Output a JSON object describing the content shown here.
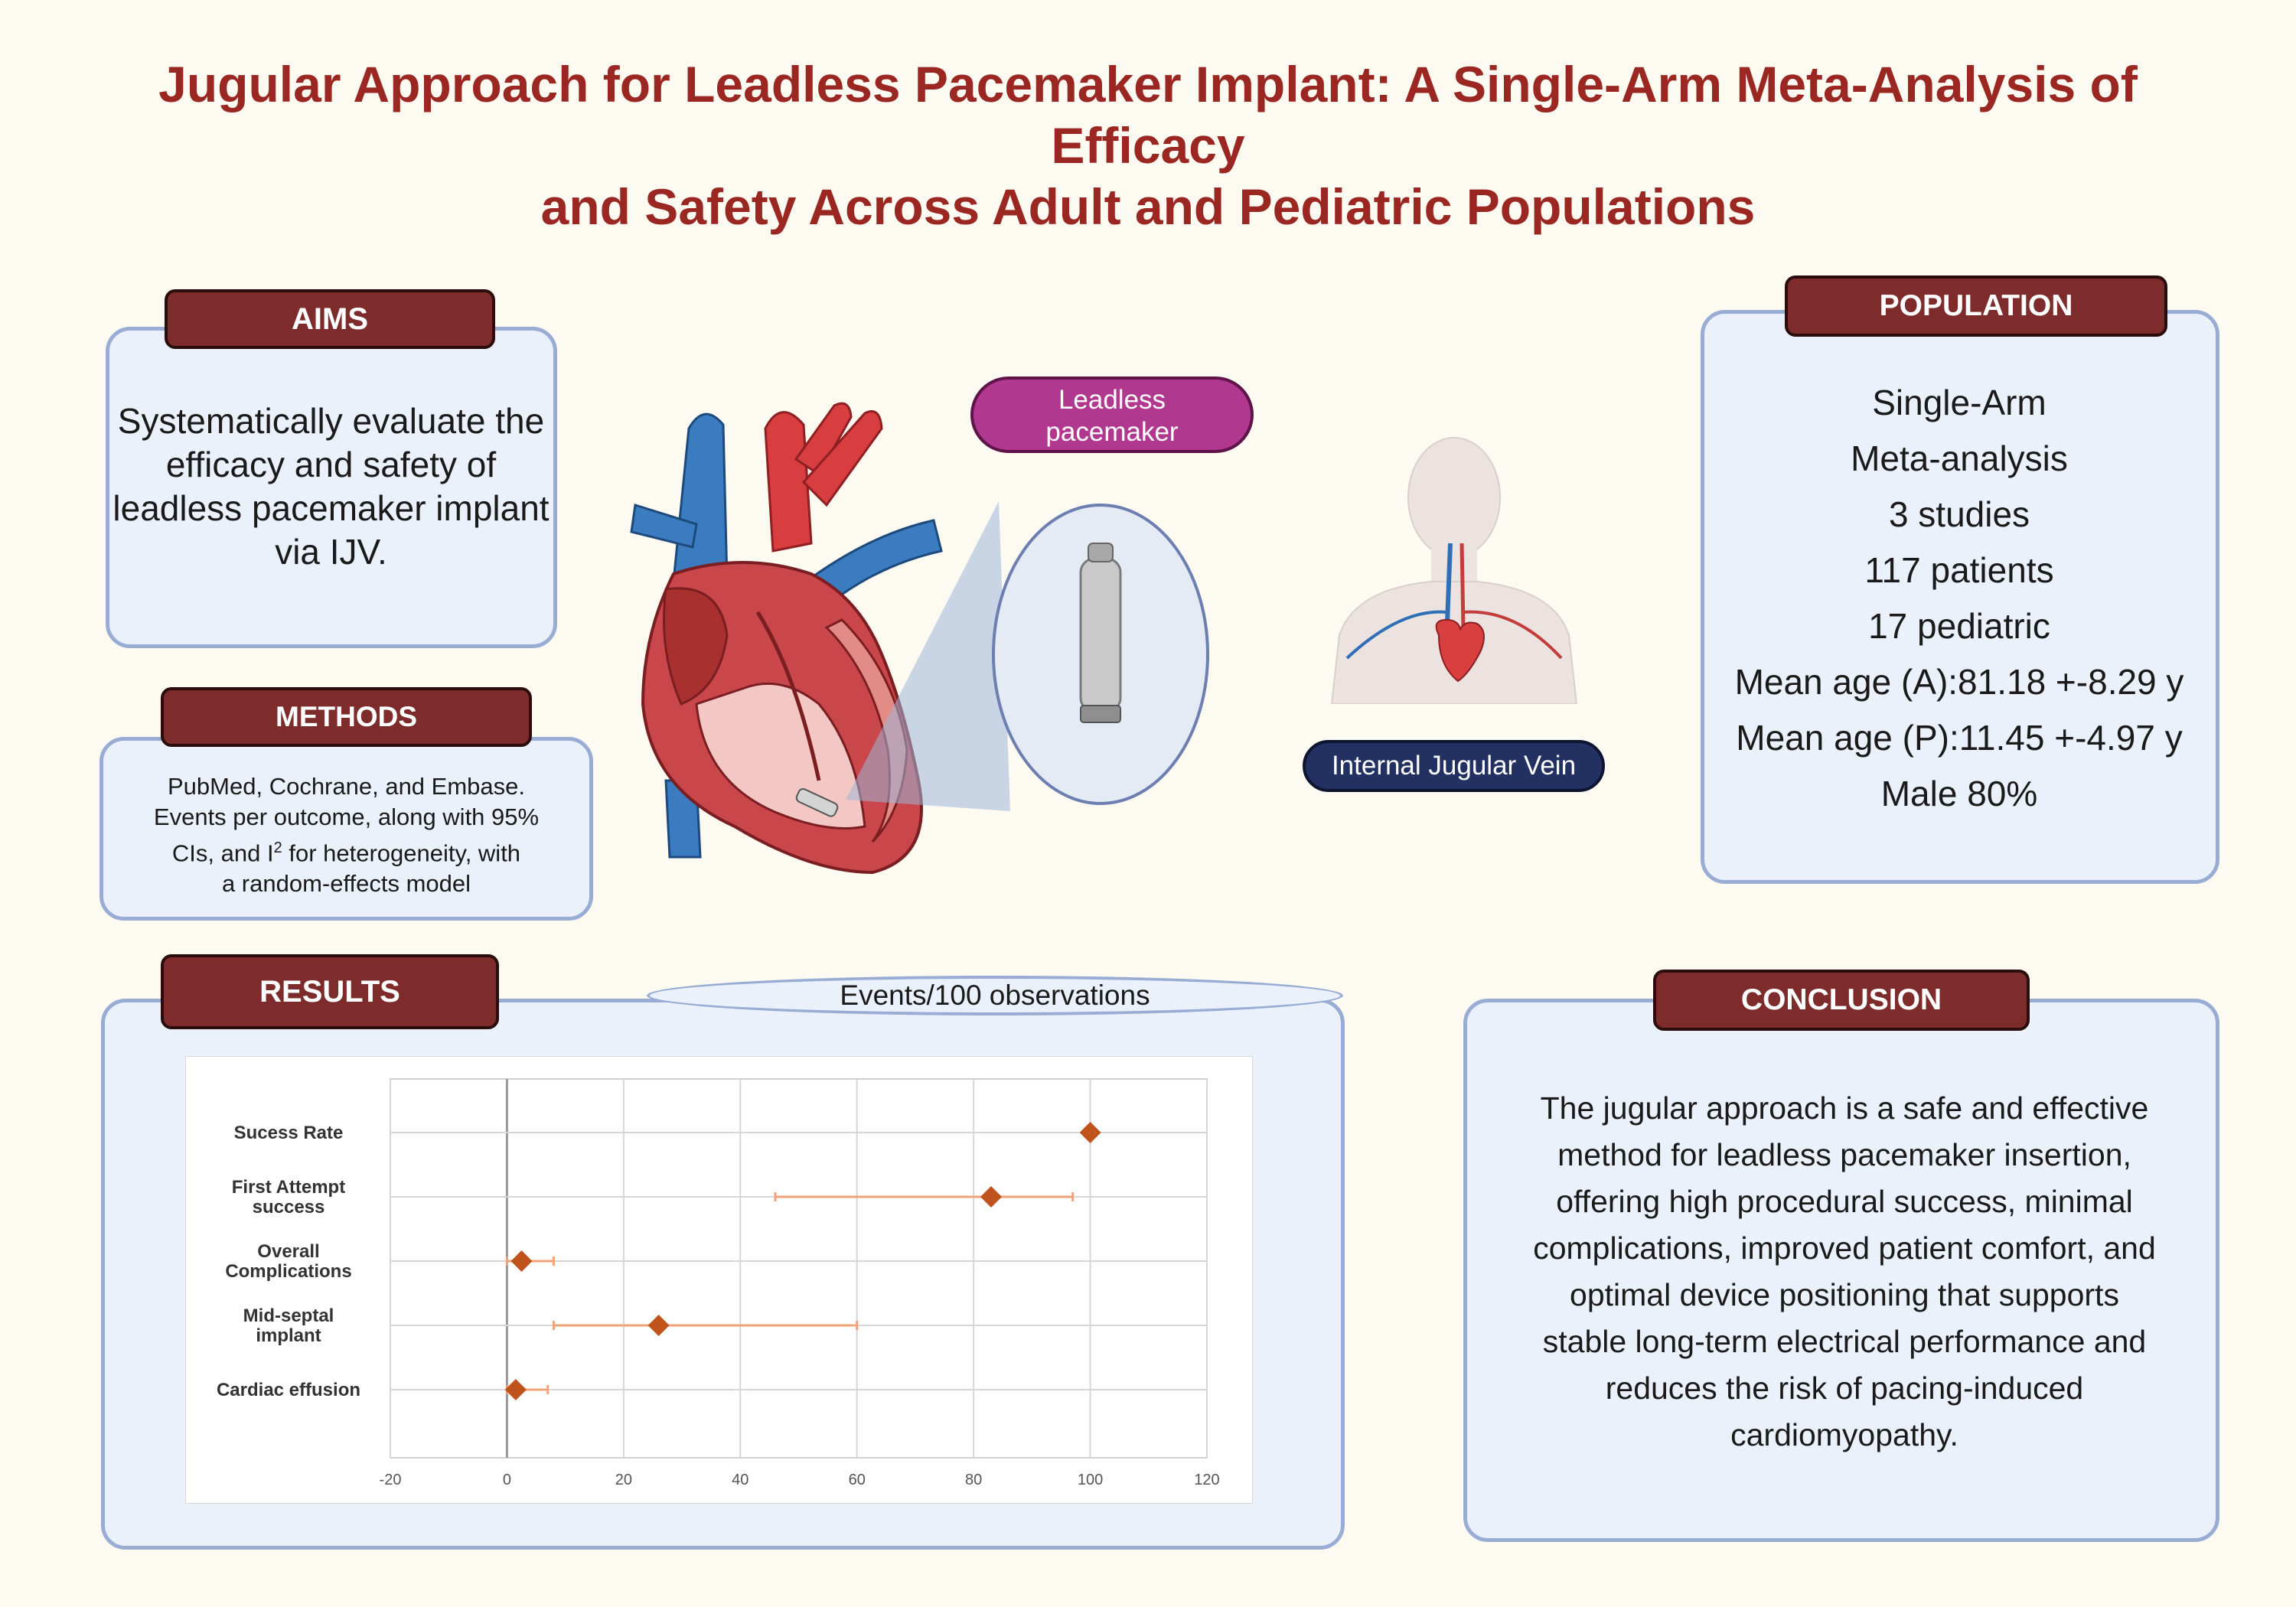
{
  "title": {
    "line1": "Jugular Approach for Leadless Pacemaker Implant: A Single-Arm Meta-Analysis of Efficacy",
    "line2": "and Safety Across Adult and Pediatric Populations"
  },
  "aims": {
    "label": "AIMS",
    "text": "Systematically evaluate the efficacy and safety of leadless pacemaker implant via IJV."
  },
  "methods": {
    "label": "METHODS",
    "line1": "PubMed, Cochrane, and Embase.",
    "line2": "Events per outcome,  along with 95%",
    "line3_pre": "CIs, and I",
    "line3_sup": "2",
    "line3_post": " for heterogeneity, with",
    "line4": "a random-effects model"
  },
  "illustration": {
    "device_label_line1": "Leadless",
    "device_label_line2": "pacemaker",
    "vein_label": "Internal Jugular Vein"
  },
  "population": {
    "label": "POPULATION",
    "items": [
      "Single-Arm",
      "Meta-analysis",
      "3 studies",
      "117 patients",
      "17 pediatric",
      "Mean age (A):81.18 +-8.29 y",
      "Mean age (P):11.45 +-4.97 y",
      "Male 80%"
    ]
  },
  "results": {
    "label": "RESULTS",
    "chart_caption": "Events/100 observations"
  },
  "conclusion": {
    "label": "CONCLUSION",
    "lines": [
      "The jugular approach is a safe and effective",
      "method for leadless pacemaker insertion,",
      "offering high procedural success, minimal",
      "complications, improved patient comfort, and",
      "optimal device positioning that supports",
      "stable long-term electrical performance and",
      "reduces the risk of pacing-induced",
      "cardiomyopathy."
    ]
  },
  "colors": {
    "title": "#9b2722",
    "label_bg": "#7d2b2b",
    "panel_bg": "#ebf1fa",
    "panel_border": "#98acd4",
    "marker": "#c0531c",
    "ci_line": "#f0a27a",
    "device_pill": "#b0398f",
    "vein_pill": "#233062"
  },
  "chart_data": {
    "type": "forest",
    "xlabel": "Events/100 observations",
    "xlim": [
      -20,
      120
    ],
    "xticks": [
      -20,
      0,
      20,
      40,
      60,
      80,
      100,
      120
    ],
    "rows": [
      {
        "lines": [
          "Sucess Rate"
        ],
        "est": 100,
        "lo": 100,
        "hi": 100
      },
      {
        "lines": [
          "First Attempt",
          "success"
        ],
        "est": 83,
        "lo": 46,
        "hi": 97
      },
      {
        "lines": [
          "Overall",
          "Complications"
        ],
        "est": 2.5,
        "lo": 0,
        "hi": 8
      },
      {
        "lines": [
          "Mid-septal",
          "implant"
        ],
        "est": 26,
        "lo": 8,
        "hi": 60
      },
      {
        "lines": [
          "Cardiac effusion"
        ],
        "est": 1.5,
        "lo": 0,
        "hi": 7
      }
    ]
  }
}
